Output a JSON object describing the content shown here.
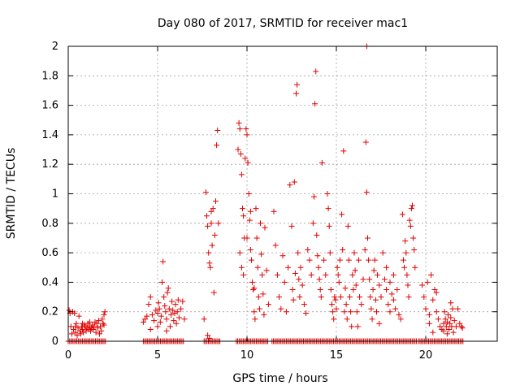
{
  "chart_data": {
    "type": "scatter",
    "title": "Day 080 of 2017, SRMTID for receiver mac1",
    "xlabel": "GPS time / hours",
    "ylabel": "SRMTID / TECUs",
    "xlim": [
      0,
      24
    ],
    "ylim": [
      0,
      2
    ],
    "x_ticks": [
      0,
      5,
      10,
      15,
      20
    ],
    "y_ticks": [
      0,
      0.2,
      0.4,
      0.6,
      0.8,
      1,
      1.2,
      1.4,
      1.6,
      1.8,
      2
    ],
    "x_tick_labels": [
      "0",
      "5",
      "10",
      "15",
      "20"
    ],
    "y_tick_labels": [
      "0",
      "0.2",
      "0.4",
      "0.6",
      "0.8",
      "1",
      "1.2",
      "1.4",
      "1.6",
      "1.8",
      "2"
    ],
    "grid": true,
    "marker": "plus",
    "color": "#e00000",
    "points": [
      [
        0.05,
        0.21
      ],
      [
        0.1,
        0.19
      ],
      [
        0.15,
        0.1
      ],
      [
        0.2,
        0.05
      ],
      [
        0.25,
        0.2
      ],
      [
        0.3,
        0.08
      ],
      [
        0.35,
        0.19
      ],
      [
        0.4,
        0.06
      ],
      [
        0.45,
        0.12
      ],
      [
        0.5,
        0.04
      ],
      [
        0.55,
        0.09
      ],
      [
        0.6,
        0.17
      ],
      [
        0.65,
        0.07
      ],
      [
        0.7,
        0.05
      ],
      [
        0.75,
        0.1
      ],
      [
        0.8,
        0.08
      ],
      [
        0.85,
        0.06
      ],
      [
        0.9,
        0.11
      ],
      [
        0.95,
        0.1
      ],
      [
        1.0,
        0.07
      ],
      [
        1.05,
        0.09
      ],
      [
        1.1,
        0.12
      ],
      [
        1.15,
        0.08
      ],
      [
        1.2,
        0.1
      ],
      [
        1.25,
        0.07
      ],
      [
        1.3,
        0.09
      ],
      [
        1.35,
        0.11
      ],
      [
        1.4,
        0.08
      ],
      [
        1.45,
        0.1
      ],
      [
        1.5,
        0.13
      ],
      [
        1.55,
        0.06
      ],
      [
        1.6,
        0.12
      ],
      [
        1.65,
        0.09
      ],
      [
        1.7,
        0.14
      ],
      [
        1.75,
        0.05
      ],
      [
        1.8,
        0.1
      ],
      [
        1.85,
        0.07
      ],
      [
        1.9,
        0.15
      ],
      [
        1.95,
        0.12
      ],
      [
        2.0,
        0.18
      ],
      [
        2.05,
        0.2
      ],
      [
        2.0,
        0.11
      ],
      [
        1.2,
        0.13
      ],
      [
        0.8,
        0.12
      ],
      [
        0.4,
        0.1
      ],
      [
        4.2,
        0.13
      ],
      [
        4.3,
        0.15
      ],
      [
        4.4,
        0.17
      ],
      [
        4.5,
        0.25
      ],
      [
        4.6,
        0.3
      ],
      [
        4.7,
        0.18
      ],
      [
        4.8,
        0.14
      ],
      [
        4.9,
        0.21
      ],
      [
        5.0,
        0.19
      ],
      [
        5.05,
        0.26
      ],
      [
        5.1,
        0.22
      ],
      [
        5.15,
        0.13
      ],
      [
        5.2,
        0.17
      ],
      [
        5.25,
        0.4
      ],
      [
        5.3,
        0.54
      ],
      [
        5.35,
        0.3
      ],
      [
        5.4,
        0.24
      ],
      [
        5.45,
        0.2
      ],
      [
        5.5,
        0.15
      ],
      [
        5.55,
        0.33
      ],
      [
        5.6,
        0.36
      ],
      [
        5.65,
        0.22
      ],
      [
        5.7,
        0.1
      ],
      [
        5.75,
        0.18
      ],
      [
        5.8,
        0.27
      ],
      [
        5.85,
        0.21
      ],
      [
        5.9,
        0.14
      ],
      [
        5.95,
        0.19
      ],
      [
        6.0,
        0.25
      ],
      [
        6.05,
        0.12
      ],
      [
        6.1,
        0.2
      ],
      [
        6.15,
        0.28
      ],
      [
        6.2,
        0.16
      ],
      [
        6.3,
        0.22
      ],
      [
        6.4,
        0.27
      ],
      [
        6.5,
        0.15
      ],
      [
        5.0,
        0.1
      ],
      [
        4.6,
        0.08
      ],
      [
        5.5,
        0.07
      ],
      [
        7.6,
        0.15
      ],
      [
        7.7,
        1.01
      ],
      [
        7.75,
        0.85
      ],
      [
        7.8,
        0.78
      ],
      [
        7.85,
        0.6
      ],
      [
        7.9,
        0.53
      ],
      [
        7.95,
        0.5
      ],
      [
        8.0,
        0.8
      ],
      [
        8.05,
        0.65
      ],
      [
        8.1,
        0.9
      ],
      [
        8.15,
        0.33
      ],
      [
        8.2,
        0.72
      ],
      [
        8.25,
        0.95
      ],
      [
        8.3,
        1.33
      ],
      [
        8.35,
        1.43
      ],
      [
        8.4,
        0.8
      ],
      [
        7.8,
        0.04
      ],
      [
        7.9,
        0.02
      ],
      [
        8.0,
        0.88
      ],
      [
        9.5,
        1.3
      ],
      [
        9.55,
        1.48
      ],
      [
        9.6,
        1.44
      ],
      [
        9.65,
        1.27
      ],
      [
        9.7,
        1.13
      ],
      [
        9.75,
        0.9
      ],
      [
        9.8,
        0.85
      ],
      [
        9.85,
        0.7
      ],
      [
        9.9,
        1.24
      ],
      [
        9.95,
        1.44
      ],
      [
        10.0,
        1.4
      ],
      [
        10.05,
        1.21
      ],
      [
        10.1,
        1.0
      ],
      [
        10.15,
        0.82
      ],
      [
        10.2,
        0.62
      ],
      [
        10.25,
        0.55
      ],
      [
        10.3,
        0.4
      ],
      [
        10.35,
        0.35
      ],
      [
        10.4,
        0.2
      ],
      [
        10.45,
        0.15
      ],
      [
        10.5,
        0.9
      ],
      [
        10.55,
        0.7
      ],
      [
        10.6,
        0.5
      ],
      [
        10.65,
        0.3
      ],
      [
        10.7,
        0.22
      ],
      [
        10.75,
        0.8
      ],
      [
        10.8,
        0.59
      ],
      [
        10.85,
        0.45
      ],
      [
        10.9,
        0.32
      ],
      [
        10.95,
        0.18
      ],
      [
        11.0,
        0.77
      ],
      [
        11.1,
        0.48
      ],
      [
        11.2,
        0.25
      ],
      [
        9.6,
        0.6
      ],
      [
        9.7,
        0.5
      ],
      [
        9.8,
        0.45
      ],
      [
        10.0,
        0.7
      ],
      [
        10.2,
        0.88
      ],
      [
        10.4,
        0.36
      ],
      [
        11.5,
        0.88
      ],
      [
        11.6,
        0.65
      ],
      [
        11.7,
        0.45
      ],
      [
        11.8,
        0.3
      ],
      [
        11.9,
        0.22
      ],
      [
        12.0,
        0.58
      ],
      [
        12.1,
        0.4
      ],
      [
        12.2,
        0.2
      ],
      [
        12.3,
        0.5
      ],
      [
        12.4,
        1.06
      ],
      [
        12.5,
        0.78
      ],
      [
        12.55,
        0.35
      ],
      [
        12.6,
        0.28
      ],
      [
        12.65,
        1.08
      ],
      [
        12.7,
        0.46
      ],
      [
        12.75,
        1.68
      ],
      [
        12.8,
        1.74
      ],
      [
        12.85,
        0.6
      ],
      [
        12.9,
        0.42
      ],
      [
        12.95,
        0.3
      ],
      [
        13.0,
        0.5
      ],
      [
        13.1,
        0.38
      ],
      [
        13.2,
        0.25
      ],
      [
        13.3,
        0.19
      ],
      [
        13.4,
        0.62
      ],
      [
        13.5,
        0.55
      ],
      [
        13.6,
        0.45
      ],
      [
        13.7,
        0.8
      ],
      [
        13.75,
        0.98
      ],
      [
        13.8,
        1.61
      ],
      [
        13.85,
        1.83
      ],
      [
        13.9,
        0.72
      ],
      [
        13.95,
        0.58
      ],
      [
        14.0,
        0.5
      ],
      [
        14.05,
        0.42
      ],
      [
        14.1,
        0.35
      ],
      [
        14.15,
        0.3
      ],
      [
        14.2,
        1.21
      ],
      [
        14.3,
        0.55
      ],
      [
        14.4,
        0.45
      ],
      [
        14.5,
        1.0
      ],
      [
        14.55,
        0.9
      ],
      [
        14.6,
        0.78
      ],
      [
        14.65,
        0.6
      ],
      [
        14.7,
        0.35
      ],
      [
        14.75,
        0.25
      ],
      [
        14.8,
        0.2
      ],
      [
        14.85,
        0.15
      ],
      [
        14.9,
        0.3
      ],
      [
        14.95,
        0.28
      ],
      [
        15.0,
        0.22
      ],
      [
        15.05,
        0.5
      ],
      [
        15.1,
        0.45
      ],
      [
        15.15,
        0.4
      ],
      [
        15.2,
        0.55
      ],
      [
        15.25,
        0.3
      ],
      [
        15.3,
        0.86
      ],
      [
        15.35,
        0.62
      ],
      [
        15.4,
        1.29
      ],
      [
        15.45,
        0.2
      ],
      [
        15.5,
        0.36
      ],
      [
        15.55,
        0.25
      ],
      [
        15.6,
        0.15
      ],
      [
        15.65,
        0.78
      ],
      [
        15.7,
        0.55
      ],
      [
        15.75,
        0.3
      ],
      [
        15.8,
        0.2
      ],
      [
        15.85,
        0.1
      ],
      [
        15.9,
        0.45
      ],
      [
        15.95,
        0.35
      ],
      [
        16.0,
        0.6
      ],
      [
        16.05,
        0.48
      ],
      [
        16.1,
        0.38
      ],
      [
        16.15,
        0.2
      ],
      [
        16.2,
        0.1
      ],
      [
        16.25,
        0.55
      ],
      [
        16.3,
        0.3
      ],
      [
        16.4,
        0.25
      ],
      [
        16.5,
        0.42
      ],
      [
        16.6,
        0.62
      ],
      [
        16.65,
        1.35
      ],
      [
        16.7,
        1.01
      ],
      [
        16.75,
        0.7
      ],
      [
        16.8,
        0.55
      ],
      [
        16.85,
        0.42
      ],
      [
        16.9,
        0.3
      ],
      [
        16.95,
        0.22
      ],
      [
        17.0,
        0.15
      ],
      [
        17.05,
        0.35
      ],
      [
        17.1,
        0.48
      ],
      [
        16.7,
        2.0
      ],
      [
        17.15,
        0.55
      ],
      [
        17.2,
        0.28
      ],
      [
        17.25,
        0.2
      ],
      [
        17.3,
        0.45
      ],
      [
        17.4,
        0.38
      ],
      [
        17.5,
        0.3
      ],
      [
        17.6,
        0.6
      ],
      [
        17.7,
        0.42
      ],
      [
        17.8,
        0.35
      ],
      [
        17.9,
        0.25
      ],
      [
        18.0,
        0.4
      ],
      [
        18.1,
        0.32
      ],
      [
        18.2,
        0.28
      ],
      [
        18.3,
        0.22
      ],
      [
        18.4,
        0.35
      ],
      [
        18.5,
        0.18
      ],
      [
        18.6,
        0.15
      ],
      [
        18.7,
        0.86
      ],
      [
        18.75,
        0.55
      ],
      [
        18.8,
        0.5
      ],
      [
        18.85,
        0.68
      ],
      [
        18.9,
        0.6
      ],
      [
        18.95,
        0.45
      ],
      [
        19.0,
        0.38
      ],
      [
        19.05,
        0.3
      ],
      [
        19.1,
        0.82
      ],
      [
        19.15,
        0.78
      ],
      [
        19.2,
        0.9
      ],
      [
        19.25,
        0.92
      ],
      [
        19.3,
        0.7
      ],
      [
        19.35,
        0.62
      ],
      [
        19.4,
        0.5
      ],
      [
        17.8,
        0.5
      ],
      [
        17.4,
        0.12
      ],
      [
        18.2,
        0.45
      ],
      [
        18.0,
        0.2
      ],
      [
        19.8,
        0.38
      ],
      [
        19.9,
        0.3
      ],
      [
        20.0,
        0.22
      ],
      [
        20.1,
        0.4
      ],
      [
        20.2,
        0.18
      ],
      [
        20.3,
        0.45
      ],
      [
        20.4,
        0.28
      ],
      [
        20.5,
        0.35
      ],
      [
        20.6,
        0.2
      ],
      [
        20.7,
        0.15
      ],
      [
        20.8,
        0.1
      ],
      [
        20.9,
        0.08
      ],
      [
        21.0,
        0.12
      ],
      [
        21.05,
        0.2
      ],
      [
        21.1,
        0.15
      ],
      [
        21.15,
        0.1
      ],
      [
        21.2,
        0.13
      ],
      [
        21.25,
        0.18
      ],
      [
        21.3,
        0.08
      ],
      [
        21.35,
        0.12
      ],
      [
        21.4,
        0.16
      ],
      [
        21.45,
        0.1
      ],
      [
        21.5,
        0.22
      ],
      [
        21.55,
        0.06
      ],
      [
        21.6,
        0.14
      ],
      [
        21.7,
        0.1
      ],
      [
        21.8,
        0.22
      ],
      [
        21.9,
        0.12
      ],
      [
        22.0,
        0.1
      ],
      [
        22.05,
        0.09
      ],
      [
        21.0,
        0.07
      ],
      [
        21.2,
        0.05
      ],
      [
        20.2,
        0.12
      ],
      [
        20.4,
        0.06
      ],
      [
        20.6,
        0.33
      ],
      [
        21.4,
        0.26
      ]
    ],
    "zero_points_ranges": [
      [
        0.0,
        2.1
      ],
      [
        4.2,
        6.5
      ],
      [
        7.6,
        8.5
      ],
      [
        9.4,
        11.2
      ],
      [
        11.4,
        19.5
      ],
      [
        19.6,
        22.1
      ]
    ]
  }
}
